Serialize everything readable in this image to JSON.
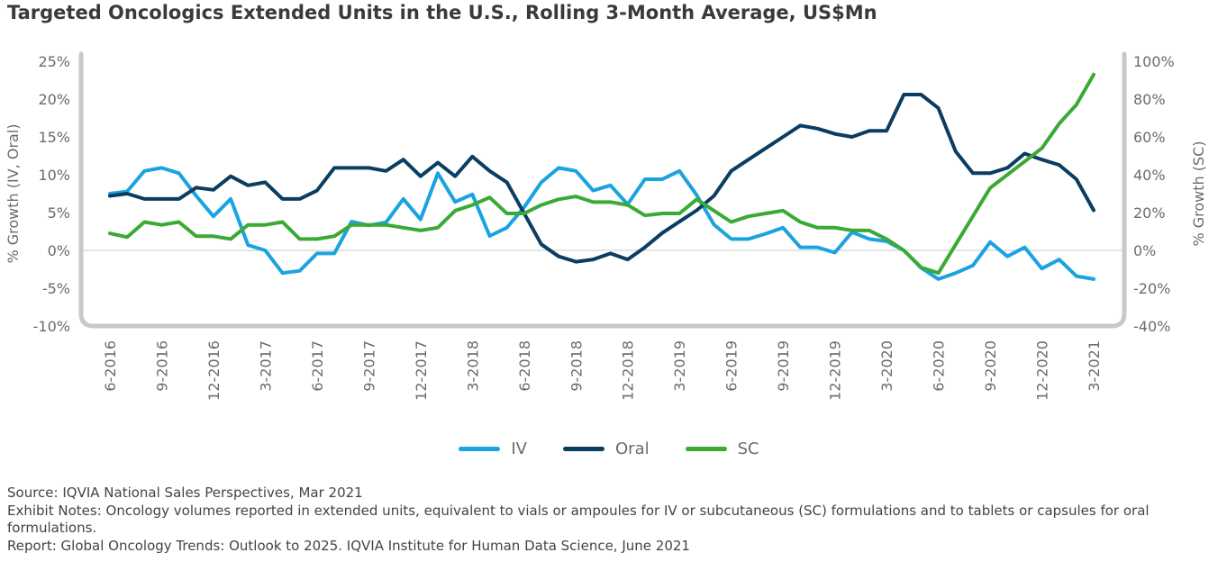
{
  "title": "Targeted Oncologics Extended Units in the U.S., Rolling 3-Month Average, US$Mn",
  "colors": {
    "IV": "#1aa3e0",
    "Oral": "#0a3d62",
    "SC": "#3aaa35",
    "axis": "#c8c8c8",
    "text": "#6b6b6b"
  },
  "notes": {
    "source": "Source: IQVIA National Sales Perspectives, Mar 2021",
    "exhibit": "Exhibit Notes: Oncology volumes reported in extended units, equivalent to vials or ampoules for IV or subcutaneous (SC) formulations and to tablets or capsules for oral formulations.",
    "report": "Report: Global Oncology Trends: Outlook to 2025. IQVIA Institute for Human Data Science, June 2021"
  },
  "chart_data": {
    "type": "line",
    "title": "Targeted Oncologics Extended Units in the U.S., Rolling 3-Month Average, US$Mn",
    "x_ticks": [
      "6-2016",
      "9-2016",
      "12-2016",
      "3-2017",
      "6-2017",
      "9-2017",
      "12-2017",
      "3-2018",
      "6-2018",
      "9-2018",
      "12-2018",
      "3-2019",
      "6-2019",
      "9-2019",
      "12-2019",
      "3-2020",
      "6-2020",
      "9-2020",
      "12-2020",
      "3-2021"
    ],
    "x_range": [
      "6-2016",
      "3-2021"
    ],
    "y_left": {
      "label": "% Growth (IV, Oral)",
      "range": [
        -10,
        25
      ],
      "ticks": [
        "25%",
        "20%",
        "15%",
        "10%",
        "5%",
        "0%",
        "-5%",
        "-10%"
      ]
    },
    "y_right": {
      "label": "% Growth (SC)",
      "range": [
        -40,
        100
      ],
      "ticks": [
        "100%",
        "80%",
        "60%",
        "40%",
        "20%",
        "0%",
        "-20%",
        "-40%"
      ]
    },
    "legend_position": "bottom",
    "series": [
      {
        "name": "IV",
        "axis": "left",
        "values": [
          7.5,
          7.8,
          10.5,
          10.9,
          10.2,
          7.2,
          4.5,
          6.8,
          0.7,
          0.0,
          -3.0,
          -2.7,
          -0.4,
          -0.4,
          3.8,
          3.3,
          3.7,
          6.8,
          4.1,
          10.2,
          6.4,
          7.4,
          1.9,
          3.0,
          5.7,
          9.0,
          10.9,
          10.5,
          7.9,
          8.6,
          6.1,
          9.4,
          9.4,
          10.5,
          7.3,
          3.4,
          1.5,
          1.5,
          2.2,
          3.0,
          0.4,
          0.4,
          -0.3,
          2.4,
          1.5,
          1.2,
          0.0,
          -2.3,
          -3.8,
          -3.0,
          -2.0,
          1.1,
          -0.8,
          0.4,
          -2.4,
          -1.2,
          -3.4,
          -3.8
        ]
      },
      {
        "name": "Oral",
        "axis": "left",
        "values": [
          7.2,
          7.5,
          6.8,
          6.8,
          6.8,
          8.3,
          8.0,
          9.8,
          8.6,
          9.0,
          6.8,
          6.8,
          7.9,
          10.9,
          10.9,
          10.9,
          10.5,
          12.0,
          9.8,
          11.6,
          9.8,
          12.4,
          10.5,
          9.0,
          4.9,
          0.8,
          -0.8,
          -1.5,
          -1.2,
          -0.4,
          -1.2,
          0.4,
          2.3,
          3.8,
          5.3,
          7.2,
          10.5,
          12.0,
          13.5,
          15.0,
          16.5,
          16.1,
          15.4,
          15.0,
          15.8,
          15.8,
          20.6,
          20.6,
          18.8,
          13.1,
          10.2,
          10.2,
          10.9,
          12.8,
          12.0,
          11.3,
          9.4,
          5.3
        ]
      },
      {
        "name": "SC",
        "axis": "right",
        "values": [
          9,
          7,
          15,
          13.5,
          15,
          7.5,
          7.5,
          6,
          13.5,
          13.5,
          15,
          6,
          6,
          7.5,
          13.5,
          13.5,
          13.5,
          12,
          10.5,
          12,
          21,
          24,
          28,
          19.5,
          19.5,
          24,
          27,
          28.5,
          25.5,
          25.5,
          24,
          18.5,
          19.5,
          19.5,
          27,
          21,
          15,
          18,
          19.5,
          21,
          15,
          12,
          12,
          10.5,
          10.5,
          6,
          0,
          -9,
          -12,
          3,
          18,
          33,
          40,
          47,
          54,
          67,
          77,
          93
        ]
      }
    ]
  }
}
